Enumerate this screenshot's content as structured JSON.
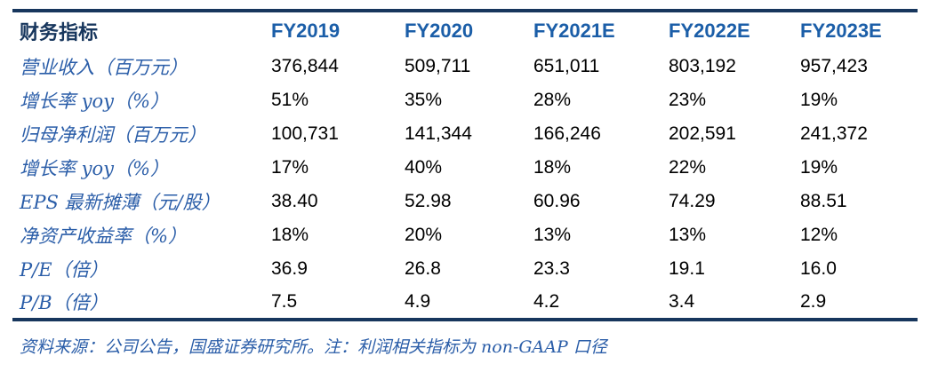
{
  "table": {
    "columns": [
      "财务指标",
      "FY2019",
      "FY2020",
      "FY2021E",
      "FY2022E",
      "FY2023E"
    ],
    "rows": [
      {
        "label": "营业收入（百万元）",
        "values": [
          "376,844",
          "509,711",
          "651,011",
          "803,192",
          "957,423"
        ]
      },
      {
        "label": "增长率 yoy（%）",
        "values": [
          "51%",
          "35%",
          "28%",
          "23%",
          "19%"
        ]
      },
      {
        "label": "归母净利润（百万元）",
        "values": [
          "100,731",
          "141,344",
          "166,246",
          "202,591",
          "241,372"
        ]
      },
      {
        "label": "增长率 yoy（%）",
        "values": [
          "17%",
          "40%",
          "18%",
          "22%",
          "19%"
        ]
      },
      {
        "label": "EPS 最新摊薄（元/股）",
        "values": [
          "38.40",
          "52.98",
          "60.96",
          "74.29",
          "88.51"
        ]
      },
      {
        "label": "净资产收益率（%）",
        "values": [
          "18%",
          "20%",
          "13%",
          "13%",
          "12%"
        ]
      },
      {
        "label": "P/E（倍）",
        "values": [
          "36.9",
          "26.8",
          "23.3",
          "19.1",
          "16.0"
        ]
      },
      {
        "label": "P/B（倍）",
        "values": [
          "7.5",
          "4.9",
          "4.2",
          "3.4",
          "2.9"
        ]
      }
    ]
  },
  "footer": {
    "text": "资料来源：公司公告，国盛证券研究所。注：利润相关指标为 non-GAAP 口径"
  },
  "colors": {
    "rule": "#17365D",
    "corner_header_text": "#17365D",
    "year_header_text": "#1B5EA8",
    "row_label_text": "#2A5DA8",
    "value_text": "#000000",
    "footer_text": "#2A5DA8",
    "background": "#FFFFFF"
  }
}
